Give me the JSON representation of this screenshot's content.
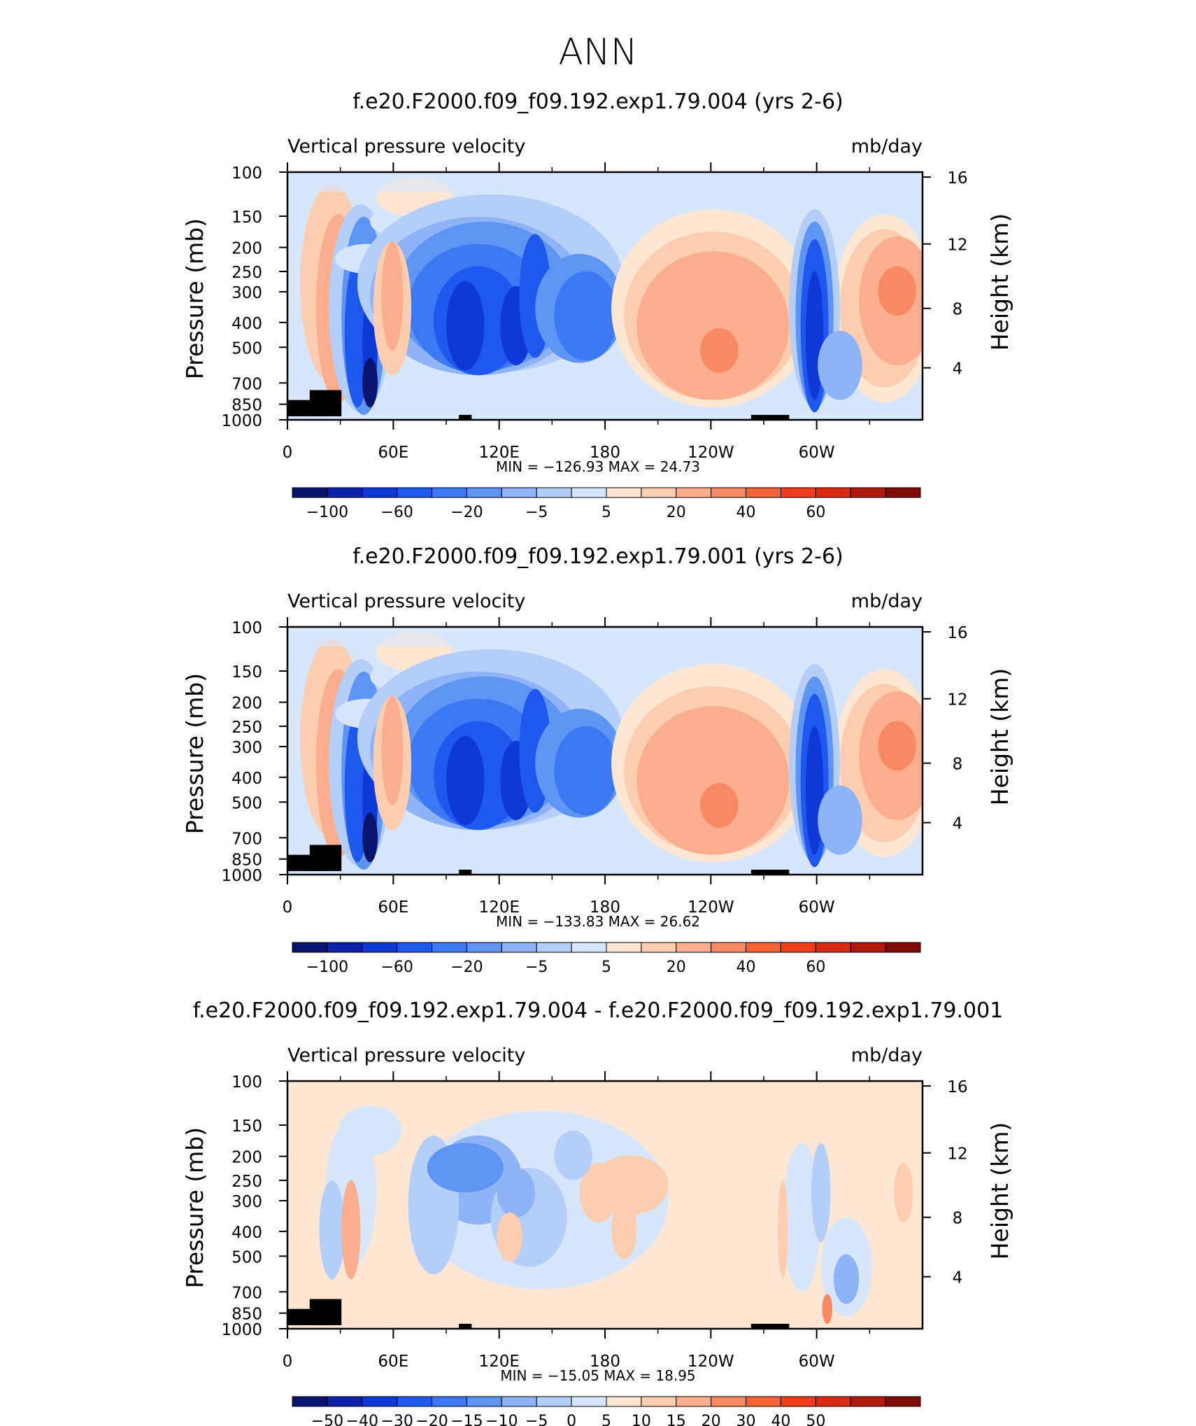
{
  "page_title": "ANN",
  "chart_data": [
    {
      "type": "heatmap",
      "title": "f.e20.F2000.f09_f09.192.exp1.79.004 (yrs 2-6)",
      "left_label": "Vertical pressure velocity",
      "right_label": "mb/day",
      "ylabel": "Pressure (mb)",
      "ylabel_right": "Height (km)",
      "x_ticks": [
        "0",
        "60E",
        "120E",
        "180",
        "120W",
        "60W"
      ],
      "y_ticks": [
        "100",
        "150",
        "200",
        "250",
        "300",
        "400",
        "500",
        "700",
        "850",
        "1000"
      ],
      "y_ticks_right": [
        "16",
        "12",
        "8",
        "4"
      ],
      "stats": {
        "min_label": "MIN =",
        "min": "−126.93",
        "max_label": "MAX =",
        "max": "24.73"
      },
      "colorbar": {
        "colors": [
          "#08136b",
          "#0a22a8",
          "#0e39d6",
          "#1f58ee",
          "#3b78f2",
          "#5e94f4",
          "#8fb3f7",
          "#b5cdf9",
          "#d7e6fb",
          "#fde6d2",
          "#fdcdb0",
          "#fbae8e",
          "#f88a63",
          "#f56437",
          "#ef3d1c",
          "#d82b12",
          "#b01a0b",
          "#800b05"
        ],
        "labels": [
          "−100",
          "−60",
          "−20",
          "−5",
          "5",
          "20",
          "40",
          "60"
        ]
      }
    },
    {
      "type": "heatmap",
      "title": "f.e20.F2000.f09_f09.192.exp1.79.001 (yrs 2-6)",
      "left_label": "Vertical pressure velocity",
      "right_label": "mb/day",
      "ylabel": "Pressure (mb)",
      "ylabel_right": "Height (km)",
      "x_ticks": [
        "0",
        "60E",
        "120E",
        "180",
        "120W",
        "60W"
      ],
      "y_ticks": [
        "100",
        "150",
        "200",
        "250",
        "300",
        "400",
        "500",
        "700",
        "850",
        "1000"
      ],
      "y_ticks_right": [
        "16",
        "12",
        "8",
        "4"
      ],
      "stats": {
        "min_label": "MIN =",
        "min": "−133.83",
        "max_label": "MAX =",
        "max": "26.62"
      },
      "colorbar": {
        "colors": [
          "#08136b",
          "#0a22a8",
          "#0e39d6",
          "#1f58ee",
          "#3b78f2",
          "#5e94f4",
          "#8fb3f7",
          "#b5cdf9",
          "#d7e6fb",
          "#fde6d2",
          "#fdcdb0",
          "#fbae8e",
          "#f88a63",
          "#f56437",
          "#ef3d1c",
          "#d82b12",
          "#b01a0b",
          "#800b05"
        ],
        "labels": [
          "−100",
          "−60",
          "−20",
          "−5",
          "5",
          "20",
          "40",
          "60"
        ]
      }
    },
    {
      "type": "heatmap",
      "title": "f.e20.F2000.f09_f09.192.exp1.79.004 - f.e20.F2000.f09_f09.192.exp1.79.001",
      "left_label": "Vertical pressure velocity",
      "right_label": "mb/day",
      "ylabel": "Pressure (mb)",
      "ylabel_right": "Height (km)",
      "x_ticks": [
        "0",
        "60E",
        "120E",
        "180",
        "120W",
        "60W"
      ],
      "y_ticks": [
        "100",
        "150",
        "200",
        "250",
        "300",
        "400",
        "500",
        "700",
        "850",
        "1000"
      ],
      "y_ticks_right": [
        "16",
        "12",
        "8",
        "4"
      ],
      "stats": {
        "min_label": "MIN =",
        "min": "−15.05",
        "max_label": "MAX =",
        "max": "18.95"
      },
      "colorbar": {
        "colors": [
          "#08136b",
          "#0a22a8",
          "#0e39d6",
          "#1f58ee",
          "#3b78f2",
          "#5e94f4",
          "#8fb3f7",
          "#b5cdf9",
          "#d7e6fb",
          "#fde6d2",
          "#fdcdb0",
          "#fbae8e",
          "#f88a63",
          "#f56437",
          "#ef3d1c",
          "#d82b12",
          "#b01a0b",
          "#800b05"
        ],
        "labels": [
          "−50",
          "−40",
          "−30",
          "−20",
          "−15",
          "−10",
          "−5",
          "0",
          "5",
          "10",
          "15",
          "20",
          "30",
          "40",
          "50"
        ]
      }
    }
  ]
}
